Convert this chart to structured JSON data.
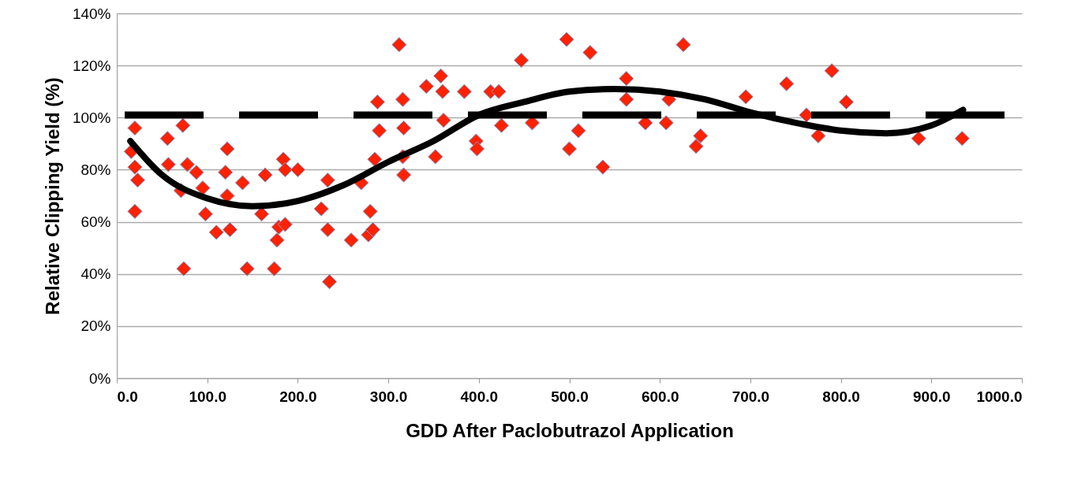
{
  "chart_data": {
    "type": "scatter",
    "xlabel": "GDD After Paclobutrazol Application",
    "ylabel": "Relative Clipping Yield (%)",
    "xlim": [
      0,
      1000
    ],
    "ylim": [
      0,
      140
    ],
    "xticks": [
      {
        "value": 0,
        "label": "0.0"
      },
      {
        "value": 100,
        "label": "100.0"
      },
      {
        "value": 200,
        "label": "200.0"
      },
      {
        "value": 300,
        "label": "300.0"
      },
      {
        "value": 400,
        "label": "400.0"
      },
      {
        "value": 500,
        "label": "500.0"
      },
      {
        "value": 600,
        "label": "600.0"
      },
      {
        "value": 700,
        "label": "700.0"
      },
      {
        "value": 800,
        "label": "800.0"
      },
      {
        "value": 900,
        "label": "900.0"
      },
      {
        "value": 1000,
        "label": "1000.0"
      }
    ],
    "yticks": [
      {
        "value": 0,
        "label": "0%"
      },
      {
        "value": 20,
        "label": "20%"
      },
      {
        "value": 40,
        "label": "40%"
      },
      {
        "value": 60,
        "label": "60%"
      },
      {
        "value": 80,
        "label": "80%"
      },
      {
        "value": 100,
        "label": "100%"
      },
      {
        "value": 120,
        "label": "120%"
      },
      {
        "value": 140,
        "label": "140%"
      }
    ],
    "grid": "y",
    "series": [
      {
        "marker": "diamond",
        "color": "#ff2200",
        "x": [
          20,
          16,
          20,
          23,
          20,
          56,
          57,
          73,
          78,
          71,
          74,
          88,
          95,
          98,
          110,
          120,
          122,
          122,
          125,
          139,
          144,
          160,
          164,
          174,
          177,
          179,
          184,
          186,
          186,
          200,
          226,
          233,
          233,
          235,
          259,
          270,
          278,
          280,
          283,
          285,
          288,
          290,
          316,
          317,
          317,
          316,
          312,
          342,
          352,
          358,
          360,
          361,
          384,
          397,
          398,
          413,
          422,
          425,
          447,
          459,
          497,
          500,
          510,
          523,
          537,
          563,
          563,
          584,
          607,
          610,
          626,
          640,
          645,
          695,
          740,
          762,
          775,
          790,
          806,
          886,
          934
        ],
        "values": [
          96,
          87,
          81,
          76,
          64,
          92,
          82,
          97,
          82,
          72,
          42,
          79,
          73,
          63,
          56,
          79,
          88,
          70,
          57,
          75,
          42,
          63,
          78,
          42,
          53,
          58,
          84,
          80,
          59,
          80,
          65,
          76,
          57,
          37,
          53,
          75,
          55,
          64,
          57,
          84,
          106,
          95,
          85,
          78,
          96,
          107,
          128,
          112,
          85,
          116,
          110,
          99,
          110,
          91,
          88,
          110,
          110,
          97,
          122,
          98,
          130,
          88,
          95,
          125,
          81,
          115,
          107,
          98,
          98,
          107,
          128,
          89,
          93,
          108,
          113,
          101,
          93,
          118,
          106,
          92,
          92
        ]
      },
      {
        "type": "line",
        "color": "#000000",
        "x": [
          15,
          50,
          100,
          150,
          200,
          250,
          300,
          350,
          400,
          450,
          500,
          550,
          600,
          650,
          700,
          750,
          800,
          850,
          900,
          935
        ],
        "values": [
          91,
          78,
          69,
          66,
          68,
          74,
          83,
          91,
          101,
          106,
          110,
          111,
          110,
          107,
          102,
          98,
          95,
          94,
          97,
          103
        ]
      }
    ],
    "ref_lines": [
      {
        "axis": "y",
        "value": 101,
        "color": "#000000",
        "line_style": "dashed"
      }
    ]
  }
}
